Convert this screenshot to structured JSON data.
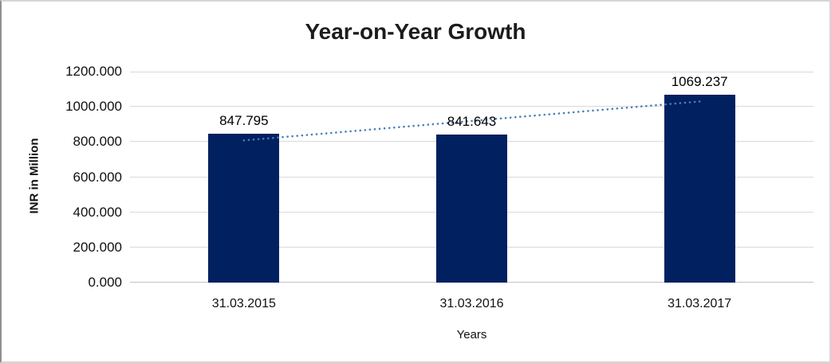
{
  "chart_data": {
    "type": "bar",
    "title": "Year-on-Year Growth",
    "xlabel": "Years",
    "ylabel": "INR in Million",
    "categories": [
      "31.03.2015",
      "31.03.2016",
      "31.03.2017"
    ],
    "values": [
      847.795,
      841.643,
      1069.237
    ],
    "data_labels": [
      "847.795",
      "841.643",
      "1069.237"
    ],
    "y_tick_labels": [
      "1200.000",
      "1000.000",
      "800.000",
      "600.000",
      "400.000",
      "200.000",
      "0.000"
    ],
    "ylim": [
      0,
      1200
    ],
    "grid": true,
    "legend": "none",
    "trendline": {
      "type": "linear",
      "style": "dotted"
    },
    "colors": {
      "bar": "#002060",
      "trend": "#4a7ebb",
      "gridline": "#d9d9d9",
      "axis_line": "#c3c3c3",
      "text": "#111111"
    }
  }
}
